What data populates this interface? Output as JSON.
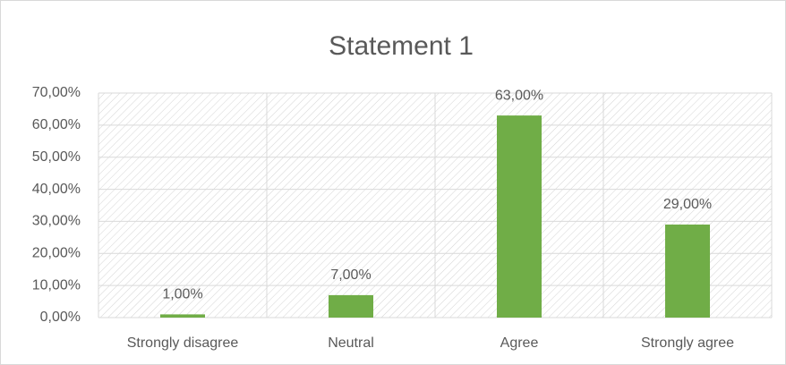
{
  "chart_data": {
    "type": "bar",
    "title": "Statement 1",
    "categories": [
      "Strongly disagree",
      "Neutral",
      "Agree",
      "Strongly agree"
    ],
    "values": [
      1,
      7,
      63,
      29
    ],
    "value_labels": [
      "1,00%",
      "7,00%",
      "63,00%",
      "29,00%"
    ],
    "color": "#70ad47",
    "ylim": [
      0,
      70
    ],
    "yticks": [
      {
        "value": 0,
        "label": "0,00%"
      },
      {
        "value": 10,
        "label": "10,00%"
      },
      {
        "value": 20,
        "label": "20,00%"
      },
      {
        "value": 30,
        "label": "30,00%"
      },
      {
        "value": 40,
        "label": "40,00%"
      },
      {
        "value": 50,
        "label": "50,00%"
      },
      {
        "value": 60,
        "label": "60,00%"
      },
      {
        "value": 70,
        "label": "70,00%"
      }
    ],
    "grid": true
  }
}
